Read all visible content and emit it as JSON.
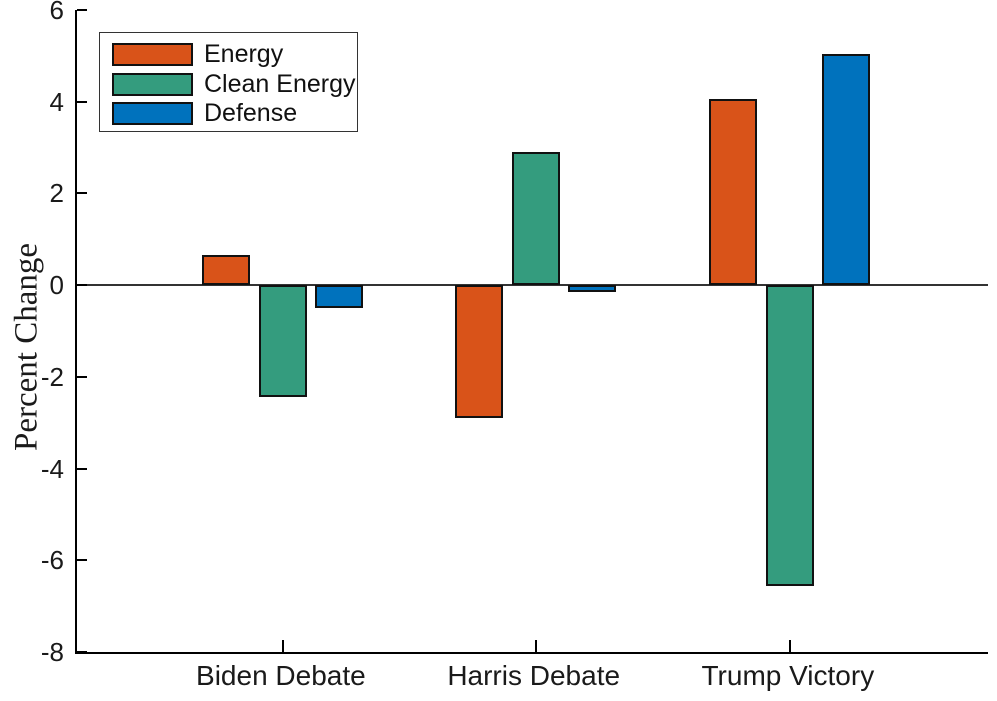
{
  "figure": {
    "background": "#FFFFFF",
    "axis_color": "#000000",
    "text_color": "#1A1A1A"
  },
  "chart_data": {
    "type": "bar",
    "title": "",
    "xlabel": "",
    "ylabel": "Percent Change",
    "categories": [
      "Biden Debate",
      "Harris Debate",
      "Trump Victory"
    ],
    "series": [
      {
        "name": "Energy",
        "color": "#D95319",
        "values": [
          0.65,
          -2.9,
          4.05
        ]
      },
      {
        "name": "Clean Energy",
        "color": "#349C7E",
        "values": [
          -2.45,
          2.9,
          -6.55
        ]
      },
      {
        "name": "Defense",
        "color": "#0072BD",
        "values": [
          -0.5,
          -0.15,
          5.05
        ]
      }
    ],
    "ylim": [
      -8,
      6
    ],
    "yticks": [
      6,
      4,
      2,
      0,
      -2,
      -4,
      -6,
      -8
    ],
    "grid": false,
    "bar_edge_color": "#111111",
    "zero_line": true,
    "legend": {
      "position": "top-left",
      "entries": [
        "Energy",
        "Clean Energy",
        "Defense"
      ]
    }
  }
}
